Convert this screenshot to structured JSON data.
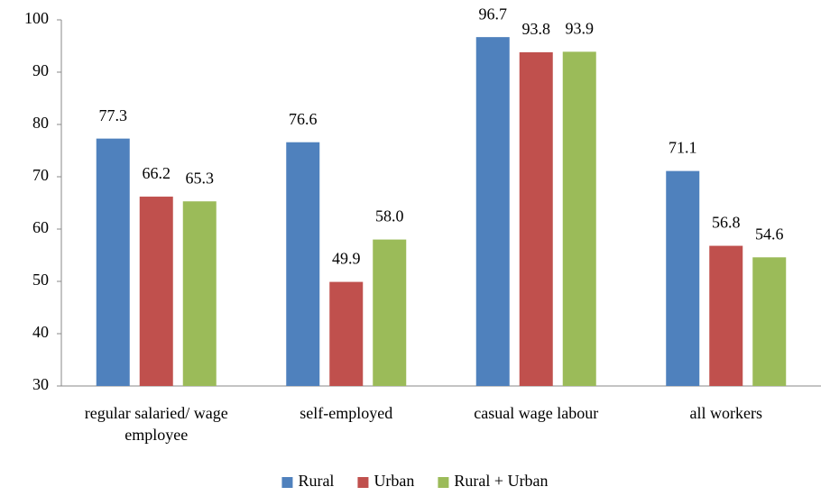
{
  "chart_data": {
    "type": "bar",
    "categories": [
      "regular salaried/ wage employee",
      "self-employed",
      "casual wage labour",
      "all workers"
    ],
    "series": [
      {
        "name": "Rural",
        "color": "#4f81bd",
        "values": [
          77.3,
          76.6,
          96.7,
          71.1
        ],
        "value_labels": [
          "77.3",
          "76.6",
          "96.7",
          "71.1"
        ]
      },
      {
        "name": "Urban",
        "color": "#c0504d",
        "values": [
          66.2,
          49.9,
          93.8,
          56.8
        ],
        "value_labels": [
          "66.2",
          "49.9",
          "93.8",
          "56.8"
        ]
      },
      {
        "name": "Rural + Urban",
        "color": "#9bbb59",
        "values": [
          65.3,
          58.0,
          93.9,
          54.6
        ],
        "value_labels": [
          "65.3",
          "58.0",
          "93.9",
          "54.6"
        ]
      }
    ],
    "ylim": [
      30,
      100
    ],
    "yticks": [
      30,
      40,
      50,
      60,
      70,
      80,
      90,
      100
    ],
    "grid": false,
    "legend": "bottom"
  }
}
